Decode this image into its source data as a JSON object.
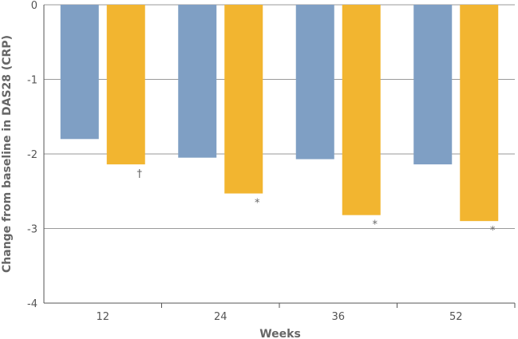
{
  "chart_data": {
    "type": "bar",
    "xlabel": "Weeks",
    "ylabel": "Change from baseline in DAS28 (CRP)",
    "ylim": [
      -4,
      0
    ],
    "yticks": [
      0,
      -1,
      -2,
      -3,
      -4
    ],
    "grid": "horizontal",
    "categories": [
      "12",
      "24",
      "36",
      "52"
    ],
    "series": [
      {
        "color": "#7f9fc4",
        "values": [
          -1.8,
          -2.05,
          -2.07,
          -2.14
        ]
      },
      {
        "color": "#f2b530",
        "values": [
          -2.14,
          -2.53,
          -2.82,
          -2.9
        ]
      }
    ],
    "annotations": [
      {
        "category": "12",
        "series": 1,
        "text": "†"
      },
      {
        "category": "24",
        "series": 1,
        "text": "*"
      },
      {
        "category": "36",
        "series": 1,
        "text": "*"
      },
      {
        "category": "52",
        "series": 1,
        "text": "*"
      }
    ]
  }
}
